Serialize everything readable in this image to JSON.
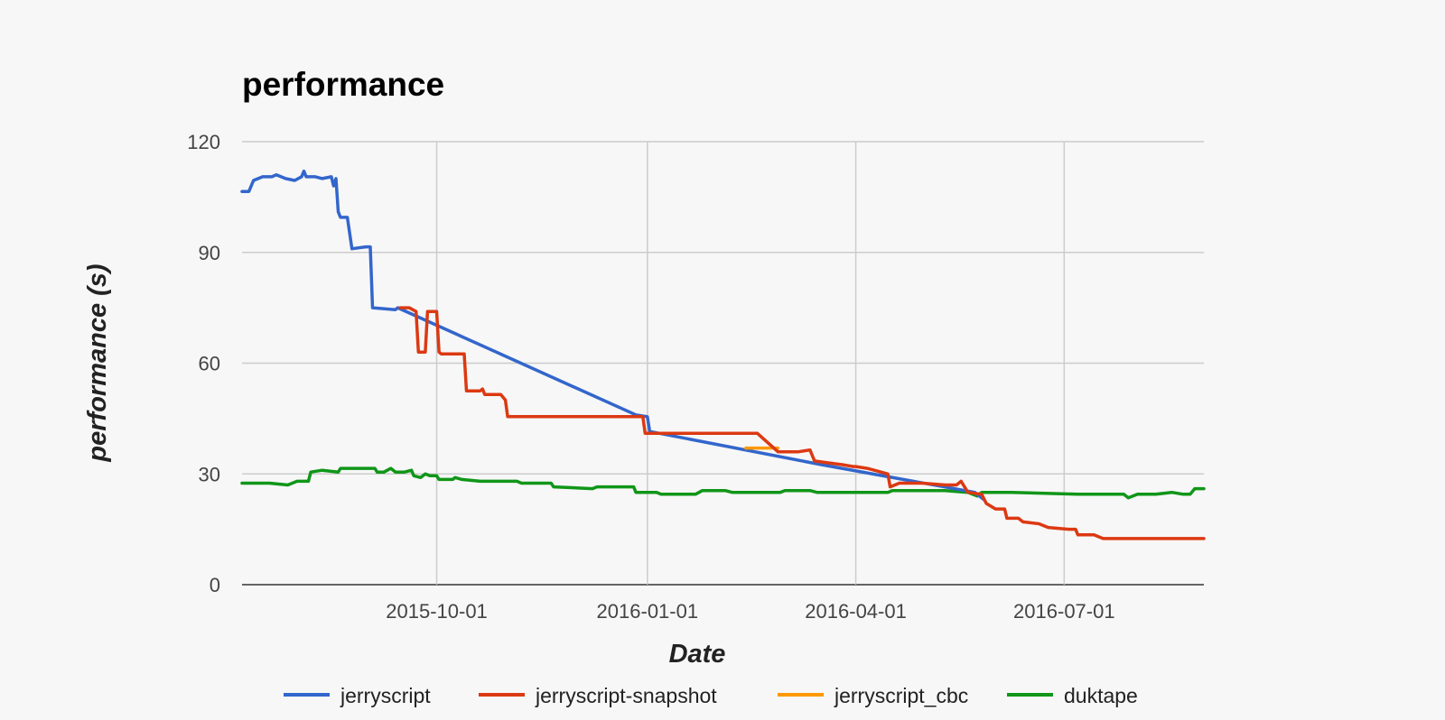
{
  "chart_data": {
    "type": "line",
    "title": "performance",
    "xlabel": "Date",
    "ylabel": "performance (s)",
    "ylim": [
      0,
      120
    ],
    "yticks": [
      0,
      30,
      60,
      90,
      120
    ],
    "xlim": [
      "2015-07-08",
      "2016-08-31"
    ],
    "xticks": [
      "2015-10-01",
      "2016-01-01",
      "2016-04-01",
      "2016-07-01"
    ],
    "grid": true,
    "legend_position": "bottom",
    "series": [
      {
        "name": "jerryscript",
        "color": "#3366cc",
        "points": [
          [
            "2015-07-08",
            106.5
          ],
          [
            "2015-07-11",
            106.5
          ],
          [
            "2015-07-13",
            109.5
          ],
          [
            "2015-07-17",
            110.5
          ],
          [
            "2015-07-21",
            110.5
          ],
          [
            "2015-07-23",
            111
          ],
          [
            "2015-07-27",
            110
          ],
          [
            "2015-07-31",
            109.5
          ],
          [
            "2015-08-03",
            110.5
          ],
          [
            "2015-08-04",
            112
          ],
          [
            "2015-08-05",
            110.5
          ],
          [
            "2015-08-09",
            110.5
          ],
          [
            "2015-08-12",
            110
          ],
          [
            "2015-08-16",
            110.5
          ],
          [
            "2015-08-17",
            108
          ],
          [
            "2015-08-18",
            110
          ],
          [
            "2015-08-19",
            101
          ],
          [
            "2015-08-20",
            99.5
          ],
          [
            "2015-08-23",
            99.5
          ],
          [
            "2015-08-25",
            91
          ],
          [
            "2015-08-31",
            91.5
          ],
          [
            "2015-09-02",
            91.5
          ],
          [
            "2015-09-03",
            75
          ],
          [
            "2015-09-13",
            74.5
          ],
          [
            "2015-09-14",
            75
          ],
          [
            "2015-12-27",
            46
          ],
          [
            "2016-01-01",
            45.5
          ],
          [
            "2016-01-02",
            41.5
          ],
          [
            "2016-03-17",
            32.5
          ],
          [
            "2016-05-23",
            25
          ],
          [
            "2016-05-27",
            23
          ]
        ]
      },
      {
        "name": "jerryscript-snapshot",
        "color": "#dc3912",
        "points": [
          [
            "2015-09-15",
            75
          ],
          [
            "2015-09-19",
            75
          ],
          [
            "2015-09-22",
            74
          ],
          [
            "2015-09-23",
            63
          ],
          [
            "2015-09-26",
            63
          ],
          [
            "2015-09-27",
            74
          ],
          [
            "2015-10-01",
            74
          ],
          [
            "2015-10-02",
            63
          ],
          [
            "2015-10-03",
            62.5
          ],
          [
            "2015-10-13",
            62.5
          ],
          [
            "2015-10-14",
            52.5
          ],
          [
            "2015-10-20",
            52.5
          ],
          [
            "2015-10-21",
            53
          ],
          [
            "2015-10-22",
            51.5
          ],
          [
            "2015-10-29",
            51.5
          ],
          [
            "2015-10-31",
            50
          ],
          [
            "2015-11-01",
            45.5
          ],
          [
            "2015-11-15",
            45.5
          ],
          [
            "2015-11-20",
            45.5
          ],
          [
            "2015-12-02",
            45.5
          ],
          [
            "2015-12-30",
            45.5
          ],
          [
            "2015-12-31",
            41
          ],
          [
            "2016-01-15",
            41
          ],
          [
            "2016-01-28",
            41
          ],
          [
            "2016-02-08",
            41
          ],
          [
            "2016-02-18",
            41
          ],
          [
            "2016-02-27",
            36
          ],
          [
            "2016-03-07",
            36
          ],
          [
            "2016-03-12",
            36.5
          ],
          [
            "2016-03-14",
            33.5
          ],
          [
            "2016-03-20",
            33
          ],
          [
            "2016-03-26",
            32.5
          ],
          [
            "2016-03-31",
            32
          ],
          [
            "2016-04-01",
            32
          ],
          [
            "2016-04-06",
            31.5
          ],
          [
            "2016-04-12",
            30.5
          ],
          [
            "2016-04-15",
            30
          ],
          [
            "2016-04-16",
            26.5
          ],
          [
            "2016-04-20",
            27.5
          ],
          [
            "2016-04-30",
            27.5
          ],
          [
            "2016-05-10",
            27
          ],
          [
            "2016-05-15",
            27
          ],
          [
            "2016-05-17",
            28
          ],
          [
            "2016-05-20",
            25
          ],
          [
            "2016-05-26",
            24.5
          ],
          [
            "2016-05-28",
            22
          ],
          [
            "2016-06-01",
            20.5
          ],
          [
            "2016-06-05",
            20.5
          ],
          [
            "2016-06-06",
            18
          ],
          [
            "2016-06-11",
            18
          ],
          [
            "2016-06-13",
            17
          ],
          [
            "2016-06-20",
            16.5
          ],
          [
            "2016-06-24",
            15.5
          ],
          [
            "2016-07-03",
            15
          ],
          [
            "2016-07-06",
            15
          ],
          [
            "2016-07-07",
            13.5
          ],
          [
            "2016-07-14",
            13.5
          ],
          [
            "2016-07-18",
            12.5
          ],
          [
            "2016-08-31",
            12.5
          ]
        ]
      },
      {
        "name": "jerryscript_cbc",
        "color": "#ff9900",
        "points": [
          [
            "2016-02-13",
            37
          ],
          [
            "2016-02-27",
            37
          ]
        ]
      },
      {
        "name": "duktape",
        "color": "#109618",
        "points": [
          [
            "2015-07-08",
            27.5
          ],
          [
            "2015-07-20",
            27.5
          ],
          [
            "2015-07-28",
            27
          ],
          [
            "2015-08-01",
            28
          ],
          [
            "2015-08-06",
            28
          ],
          [
            "2015-08-07",
            30.5
          ],
          [
            "2015-08-12",
            31
          ],
          [
            "2015-08-19",
            30.5
          ],
          [
            "2015-08-20",
            31.5
          ],
          [
            "2015-08-28",
            31.5
          ],
          [
            "2015-09-04",
            31.5
          ],
          [
            "2015-09-05",
            30.5
          ],
          [
            "2015-09-08",
            30.5
          ],
          [
            "2015-09-11",
            31.5
          ],
          [
            "2015-09-13",
            30.5
          ],
          [
            "2015-09-17",
            30.5
          ],
          [
            "2015-09-20",
            31
          ],
          [
            "2015-09-21",
            29.5
          ],
          [
            "2015-09-24",
            29
          ],
          [
            "2015-09-26",
            30
          ],
          [
            "2015-09-28",
            29.5
          ],
          [
            "2015-10-01",
            29.5
          ],
          [
            "2015-10-02",
            28.5
          ],
          [
            "2015-10-06",
            28.5
          ],
          [
            "2015-10-08",
            28.5
          ],
          [
            "2015-10-09",
            29
          ],
          [
            "2015-10-12",
            28.5
          ],
          [
            "2015-10-20",
            28
          ],
          [
            "2015-11-05",
            28
          ],
          [
            "2015-11-07",
            27.5
          ],
          [
            "2015-11-20",
            27.5
          ],
          [
            "2015-11-21",
            26.5
          ],
          [
            "2015-12-08",
            26
          ],
          [
            "2015-12-10",
            26.5
          ],
          [
            "2015-12-26",
            26.5
          ],
          [
            "2015-12-27",
            25
          ],
          [
            "2016-01-05",
            25
          ],
          [
            "2016-01-07",
            24.5
          ],
          [
            "2016-01-22",
            24.5
          ],
          [
            "2016-01-25",
            25.5
          ],
          [
            "2016-02-04",
            25.5
          ],
          [
            "2016-02-07",
            25
          ],
          [
            "2016-02-28",
            25
          ],
          [
            "2016-03-01",
            25.5
          ],
          [
            "2016-03-12",
            25.5
          ],
          [
            "2016-03-15",
            25
          ],
          [
            "2016-04-15",
            25
          ],
          [
            "2016-04-17",
            25.5
          ],
          [
            "2016-05-10",
            25.5
          ],
          [
            "2016-05-20",
            25
          ],
          [
            "2016-05-24",
            24
          ],
          [
            "2016-05-26",
            25
          ],
          [
            "2016-06-08",
            25
          ],
          [
            "2016-07-07",
            24.5
          ],
          [
            "2016-07-15",
            24.5
          ],
          [
            "2016-07-27",
            24.5
          ],
          [
            "2016-07-29",
            23.5
          ],
          [
            "2016-08-02",
            24.5
          ],
          [
            "2016-08-10",
            24.5
          ],
          [
            "2016-08-17",
            25
          ],
          [
            "2016-08-22",
            24.5
          ],
          [
            "2016-08-25",
            24.5
          ],
          [
            "2016-08-27",
            26
          ],
          [
            "2016-08-31",
            26
          ]
        ]
      }
    ]
  }
}
